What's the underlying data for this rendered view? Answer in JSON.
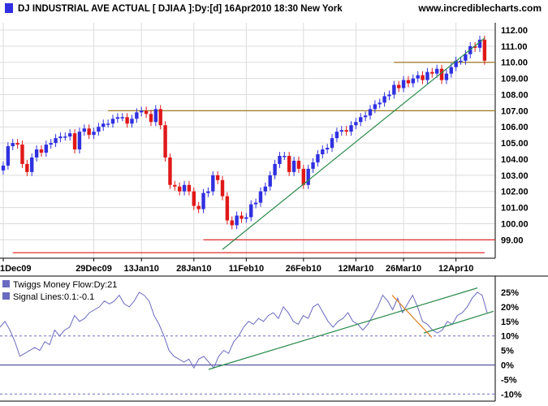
{
  "header": {
    "title": "DJ INDUSTRIAL AVE ACTUAL [ DJIAA ]:Dy:[d]  16Apr2010 18:30 New York",
    "site": "www.incrediblecharts.com"
  },
  "colors": {
    "up": "#3030e0",
    "down": "#e01818",
    "resistance": "#a07820",
    "support": "#e01818",
    "trend": "#2a8a4a",
    "tmf": "#6a6ac0",
    "signal": "#6a6ac0",
    "down_trend": "#e08020"
  },
  "chart_data": [
    {
      "type": "candlestick",
      "title": "DJ INDUSTRIAL AVE ACTUAL [ DJIAA ]:Dy:[d]  16Apr2010 18:30 New York",
      "ylim": [
        98.4,
        112.4
      ],
      "y_ticks": [
        "99.00",
        "100.00",
        "101.00",
        "102.00",
        "103.00",
        "104.00",
        "105.00",
        "106.00",
        "107.00",
        "108.00",
        "109.00",
        "110.00",
        "111.00",
        "112.00"
      ],
      "x_tick_labels": [
        "1Dec09",
        "29Dec09",
        "13Jan10",
        "28Jan10",
        "11Feb10",
        "26Feb10",
        "12Mar10",
        "26Mar10",
        "12Apr10"
      ],
      "x_tick_index": [
        0,
        19,
        29,
        40,
        51,
        63,
        74,
        84,
        95
      ],
      "closes": [
        103.6,
        104.8,
        105.0,
        104.9,
        103.7,
        103.2,
        104.1,
        104.6,
        104.4,
        104.9,
        105.0,
        105.3,
        105.4,
        105.4,
        105.6,
        104.6,
        105.7,
        105.9,
        105.5,
        105.7,
        106.0,
        106.2,
        106.2,
        106.5,
        106.6,
        106.6,
        106.2,
        106.5,
        106.9,
        107.0,
        106.8,
        106.3,
        107.1,
        106.1,
        104.1,
        102.4,
        102.3,
        102.0,
        102.4,
        102.0,
        101.1,
        100.9,
        101.9,
        102.0,
        103.0,
        102.7,
        101.7,
        100.2,
        99.9,
        100.5,
        100.3,
        100.4,
        101.2,
        101.3,
        102.0,
        102.3,
        103.0,
        103.7,
        104.2,
        104.2,
        103.2,
        103.9,
        103.4,
        102.4,
        103.4,
        103.8,
        104.3,
        104.6,
        104.7,
        105.3,
        105.7,
        105.8,
        105.7,
        106.1,
        106.3,
        106.6,
        106.7,
        107.1,
        107.4,
        107.5,
        107.9,
        108.0,
        108.6,
        108.4,
        108.9,
        108.7,
        109.0,
        109.2,
        108.9,
        109.4,
        109.3,
        109.6,
        108.9,
        109.3,
        109.7,
        110.1,
        110.1,
        110.5,
        111.0,
        110.9,
        111.4,
        110.1
      ],
      "lines": {
        "resistance_low": 107.0,
        "resistance_high": 110.0,
        "support_mid": 99.0,
        "support_low": 98.2
      }
    },
    {
      "type": "line",
      "title": "Twiggs Money Flow:Dy:21",
      "legend": [
        "Twiggs Money Flow:Dy:21",
        "Signal Lines:0.1:-0.1"
      ],
      "ylim": [
        -10,
        27
      ],
      "y_ticks": [
        "25%",
        "20%",
        "15%",
        "10%",
        "5%",
        "0%",
        "-5%",
        "-10%"
      ],
      "signal_lines": [
        10,
        -10
      ],
      "zero_line": 0,
      "values": [
        13,
        15,
        12,
        8,
        3,
        4,
        5,
        6,
        5,
        8,
        7,
        12,
        10,
        12,
        13,
        17,
        15,
        16,
        18,
        19,
        20,
        22,
        21,
        22,
        24,
        21,
        20,
        22,
        25,
        24,
        22,
        17,
        14,
        10,
        5,
        3,
        2,
        1,
        2,
        -1,
        2,
        3,
        1,
        -1,
        3,
        5,
        4,
        8,
        10,
        13,
        15,
        14,
        16,
        15,
        17,
        18,
        16,
        20,
        18,
        15,
        14,
        17,
        16,
        20,
        21,
        18,
        15,
        13,
        15,
        16,
        18,
        15,
        14,
        12,
        14,
        17,
        20,
        24,
        22,
        19,
        23,
        18,
        21,
        24,
        20,
        15,
        14,
        12,
        11,
        12,
        15,
        14,
        17,
        18,
        20,
        23,
        25,
        24,
        18
      ]
    }
  ]
}
